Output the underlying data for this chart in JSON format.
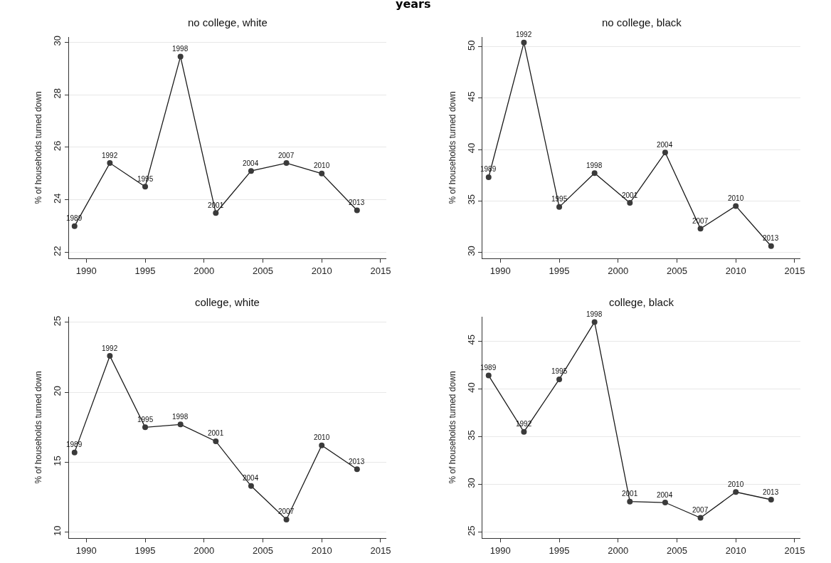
{
  "chart_data": [
    {
      "type": "line",
      "title": "no college, white",
      "ylabel": "% of households turned down",
      "x": [
        1989,
        1992,
        1995,
        1998,
        2001,
        2004,
        2007,
        2010,
        2013
      ],
      "series": [
        {
          "color": "#3a3a3a",
          "values": [
            23.0,
            25.4,
            24.5,
            29.45,
            23.5,
            25.1,
            25.4,
            25.0,
            23.6
          ]
        }
      ],
      "xlim": [
        1988.5,
        2015.5
      ],
      "xticks": [
        1990,
        1995,
        2000,
        2005,
        2010,
        2015
      ],
      "ylim": [
        21.77,
        30.2
      ],
      "yticks": [
        22,
        24,
        26,
        28,
        30
      ],
      "grid": "y",
      "marker": "circle",
      "line_style": "solid",
      "annotations": [
        "years",
        {
          "text": "1989",
          "x": 1989,
          "y": 23.0
        },
        {
          "text": "1992",
          "x": 1992,
          "y": 25.4
        },
        {
          "text": "1995",
          "x": 1995,
          "y": 24.5
        },
        {
          "text": "1998",
          "x": 1998,
          "y": 29.45
        },
        {
          "text": "2001",
          "x": 2001,
          "y": 23.5
        },
        {
          "text": "2004",
          "x": 2004,
          "y": 25.1
        },
        {
          "text": "2007",
          "x": 2007,
          "y": 25.4
        },
        {
          "text": "2010",
          "x": 2010,
          "y": 25.0
        },
        {
          "text": "2013",
          "x": 2013,
          "y": 23.6
        }
      ]
    },
    {
      "type": "line",
      "title": "no college, black",
      "ylabel": "% of households turned down",
      "x": [
        1989,
        1992,
        1995,
        1998,
        2001,
        2004,
        2007,
        2010,
        2013
      ],
      "series": [
        {
          "color": "#3a3a3a",
          "values": [
            37.3,
            50.4,
            34.4,
            37.7,
            34.8,
            39.7,
            32.3,
            34.5,
            30.6
          ]
        }
      ],
      "xlim": [
        1988.5,
        2015.5
      ],
      "xticks": [
        1990,
        1995,
        2000,
        2005,
        2010,
        2015
      ],
      "ylim": [
        29.4,
        50.95
      ],
      "yticks": [
        30,
        35,
        40,
        45,
        50
      ],
      "grid": "y",
      "marker": "circle",
      "line_style": "solid",
      "annotations": [
        {
          "text": "1989",
          "x": 1989,
          "y": 37.3
        },
        {
          "text": "1992",
          "x": 1992,
          "y": 50.4
        },
        {
          "text": "1995",
          "x": 1995,
          "y": 34.4
        },
        {
          "text": "1998",
          "x": 1998,
          "y": 37.7
        },
        {
          "text": "2001",
          "x": 2001,
          "y": 34.8
        },
        {
          "text": "2004",
          "x": 2004,
          "y": 39.7
        },
        {
          "text": "2007",
          "x": 2007,
          "y": 32.3
        },
        {
          "text": "2010",
          "x": 2010,
          "y": 34.5
        },
        {
          "text": "2013",
          "x": 2013,
          "y": 30.6
        }
      ]
    },
    {
      "type": "line",
      "title": "college, white",
      "ylabel": "% of households turned down",
      "x": [
        1989,
        1992,
        1995,
        1998,
        2001,
        2004,
        2007,
        2010,
        2013
      ],
      "series": [
        {
          "color": "#3a3a3a",
          "values": [
            15.7,
            22.6,
            17.5,
            17.7,
            16.5,
            13.3,
            10.9,
            16.2,
            14.5
          ]
        }
      ],
      "xlim": [
        1988.5,
        2015.5
      ],
      "xticks": [
        1990,
        1995,
        2000,
        2005,
        2010,
        2015
      ],
      "ylim": [
        9.57,
        25.41
      ],
      "yticks": [
        10,
        15,
        20,
        25
      ],
      "grid": "y",
      "marker": "circle",
      "line_style": "solid",
      "annotations": [
        {
          "text": "1989",
          "x": 1989,
          "y": 15.7
        },
        {
          "text": "1992",
          "x": 1992,
          "y": 22.6
        },
        {
          "text": "1995",
          "x": 1995,
          "y": 17.5
        },
        {
          "text": "1998",
          "x": 1998,
          "y": 17.7
        },
        {
          "text": "2001",
          "x": 2001,
          "y": 16.5
        },
        {
          "text": "2004",
          "x": 2004,
          "y": 13.3
        },
        {
          "text": "2007",
          "x": 2007,
          "y": 10.9
        },
        {
          "text": "2010",
          "x": 2010,
          "y": 16.2
        },
        {
          "text": "2013",
          "x": 2013,
          "y": 14.5
        }
      ]
    },
    {
      "type": "line",
      "title": "college, black",
      "ylabel": "% of households turned down",
      "x": [
        1989,
        1992,
        1995,
        1998,
        2001,
        2004,
        2007,
        2010,
        2013
      ],
      "series": [
        {
          "color": "#3a3a3a",
          "values": [
            41.4,
            35.5,
            41.0,
            47.0,
            28.2,
            28.1,
            26.5,
            29.2,
            28.4
          ]
        }
      ],
      "xlim": [
        1988.5,
        2015.5
      ],
      "xticks": [
        1990,
        1995,
        2000,
        2005,
        2010,
        2015
      ],
      "ylim": [
        24.37,
        47.56
      ],
      "yticks": [
        25,
        30,
        35,
        40,
        45
      ],
      "grid": "y",
      "marker": "circle",
      "line_style": "solid",
      "annotations": [
        {
          "text": "1989",
          "x": 1989,
          "y": 41.4
        },
        {
          "text": "1992",
          "x": 1992,
          "y": 35.5
        },
        {
          "text": "1995",
          "x": 1995,
          "y": 41.0
        },
        {
          "text": "1998",
          "x": 1998,
          "y": 47.0
        },
        {
          "text": "2001",
          "x": 2001,
          "y": 28.2
        },
        {
          "text": "2004",
          "x": 2004,
          "y": 28.1
        },
        {
          "text": "2007",
          "x": 2007,
          "y": 26.5
        },
        {
          "text": "2010",
          "x": 2010,
          "y": 29.2
        },
        {
          "text": "2013",
          "x": 2013,
          "y": 28.4
        }
      ]
    }
  ]
}
